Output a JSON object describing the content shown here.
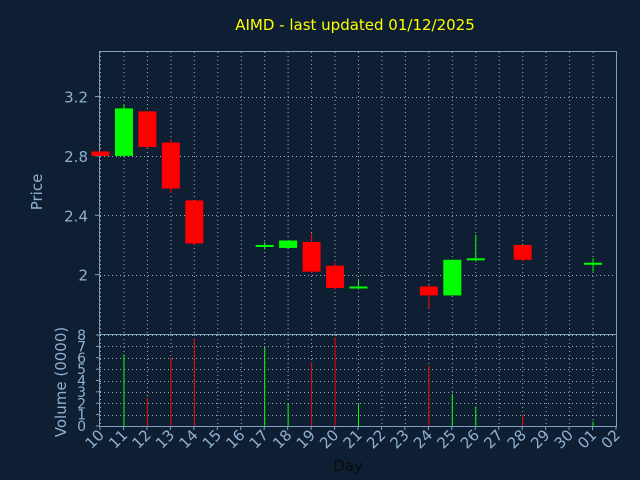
{
  "chart_data": {
    "type": "candlestick",
    "title": "AIMD - last updated 01/12/2025",
    "xlabel": "Day",
    "price_panel": {
      "ylabel": "Price",
      "yticks": [
        2,
        2.4,
        2.8,
        3.2
      ],
      "ylim": [
        1.6,
        3.5
      ]
    },
    "volume_panel": {
      "ylabel": "Volume (0000)",
      "yticks": [
        0,
        1,
        2,
        3,
        4,
        5,
        6,
        7,
        8
      ],
      "ylim": [
        0,
        8
      ]
    },
    "x_tick_labels": [
      "10",
      "11",
      "12",
      "13",
      "14",
      "15",
      "16",
      "17",
      "18",
      "19",
      "20",
      "21",
      "22",
      "23",
      "24",
      "25",
      "26",
      "27",
      "28",
      "29",
      "30",
      "01",
      "02"
    ],
    "up_color": "#00ff00",
    "down_color": "#ff0000",
    "candles": [
      {
        "day": "10",
        "open": 2.83,
        "high": 2.83,
        "low": 2.8,
        "close": 2.8,
        "volume": 0
      },
      {
        "day": "11",
        "open": 2.8,
        "high": 3.15,
        "low": 2.79,
        "close": 3.12,
        "volume": 6.3
      },
      {
        "day": "12",
        "open": 3.1,
        "high": 3.1,
        "low": 2.85,
        "close": 2.86,
        "volume": 2.5
      },
      {
        "day": "13",
        "open": 2.89,
        "high": 2.91,
        "low": 2.55,
        "close": 2.58,
        "volume": 6.0
      },
      {
        "day": "14",
        "open": 2.5,
        "high": 2.5,
        "low": 2.2,
        "close": 2.21,
        "volume": 7.7
      },
      {
        "day": "17",
        "open": 2.19,
        "high": 2.22,
        "low": 2.17,
        "close": 2.2,
        "volume": 6.9
      },
      {
        "day": "18",
        "open": 2.18,
        "high": 2.23,
        "low": 2.18,
        "close": 2.23,
        "volume": 2.0
      },
      {
        "day": "19",
        "open": 2.22,
        "high": 2.28,
        "low": 2.01,
        "close": 2.02,
        "volume": 5.6
      },
      {
        "day": "20",
        "open": 2.06,
        "high": 2.08,
        "low": 1.9,
        "close": 1.91,
        "volume": 7.8
      },
      {
        "day": "21",
        "open": 1.91,
        "high": 1.97,
        "low": 1.9,
        "close": 1.92,
        "volume": 2.0
      },
      {
        "day": "24",
        "open": 1.92,
        "high": 1.93,
        "low": 1.77,
        "close": 1.86,
        "volume": 5.3
      },
      {
        "day": "25",
        "open": 1.86,
        "high": 2.1,
        "low": 1.86,
        "close": 2.1,
        "volume": 2.8
      },
      {
        "day": "26",
        "open": 2.1,
        "high": 2.27,
        "low": 2.09,
        "close": 2.11,
        "volume": 1.7
      },
      {
        "day": "28",
        "open": 2.2,
        "high": 2.2,
        "low": 2.09,
        "close": 2.1,
        "volume": 1.0
      },
      {
        "day": "01",
        "open": 2.07,
        "high": 2.11,
        "low": 2.02,
        "close": 2.08,
        "volume": 0.4
      }
    ]
  }
}
